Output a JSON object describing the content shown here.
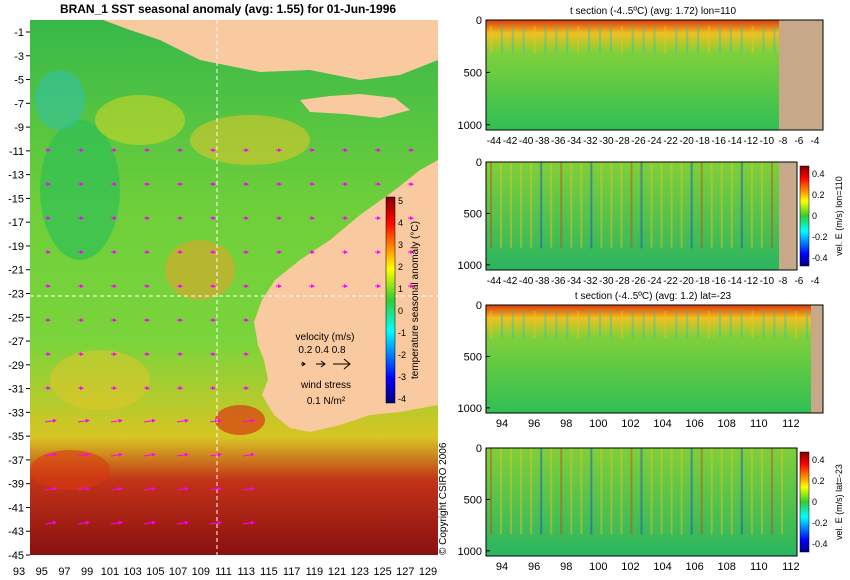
{
  "main_map": {
    "title": "BRAN_1 SST seasonal anomaly (avg: 1.55) for 01-Jun-1996",
    "lat_ticks": [
      "-1",
      "-3",
      "-5",
      "-7",
      "-9",
      "-11",
      "-13",
      "-15",
      "-17",
      "-19",
      "-21",
      "-23",
      "-25",
      "-27",
      "-29",
      "-31",
      "-33",
      "-35",
      "-37",
      "-39",
      "-41",
      "-43",
      "-45"
    ],
    "lon_ticks": [
      "93",
      "95",
      "97",
      "99",
      "101",
      "103",
      "105",
      "107",
      "109",
      "111",
      "113",
      "115",
      "117",
      "119",
      "121",
      "123",
      "125",
      "127",
      "129"
    ],
    "colorbar_ticks": [
      "5",
      "4",
      "3",
      "2",
      "1",
      "0",
      "-1",
      "-2",
      "-3",
      "-4"
    ],
    "colorbar_label": "temperature seasonal anomaly (°C)",
    "velocity_legend": {
      "title": "velocity (m/s)",
      "values": "0.2 0.4 0.8"
    },
    "wind_legend": {
      "title": "wind stress",
      "value": "0.1 N/m²"
    },
    "copyright": "© Copyright CSIRO 2006",
    "colors": {
      "land": "#f9c9a0",
      "section_land": "#c7a98a",
      "arrow": "#ff00ff",
      "crosshair": "#ffffff"
    }
  },
  "panels": [
    {
      "id": "t_section_lon110",
      "title": "t section (-4..5ºC) (avg: 1.72) lon=110",
      "y_ticks": [
        "0",
        "500",
        "1000"
      ],
      "x_ticks": [
        "-44",
        "-42",
        "-40",
        "-38",
        "-36",
        "-34",
        "-32",
        "-30",
        "-28",
        "-26",
        "-24",
        "-22",
        "-20",
        "-18",
        "-16",
        "-14",
        "-12",
        "-10",
        "-8",
        "-6",
        "-4"
      ],
      "colorbar": null
    },
    {
      "id": "vel_e_lon110",
      "title": "",
      "y_ticks": [
        "0",
        "500",
        "1000"
      ],
      "x_ticks": [
        "-44",
        "-42",
        "-40",
        "-38",
        "-36",
        "-34",
        "-32",
        "-30",
        "-28",
        "-26",
        "-24",
        "-22",
        "-20",
        "-18",
        "-16",
        "-14",
        "-12",
        "-10",
        "-8",
        "-6",
        "-4"
      ],
      "colorbar": {
        "ticks": [
          "0.4",
          "0.2",
          "0",
          "-0.2",
          "-0.4"
        ],
        "label": "vel. E (m/s) lon=110"
      }
    },
    {
      "id": "t_section_lat23",
      "title": "t section (-4..5ºC) (avg: 1.2) lat=-23",
      "y_ticks": [
        "0",
        "500",
        "1000"
      ],
      "x_ticks": [
        "94",
        "96",
        "98",
        "100",
        "102",
        "104",
        "106",
        "108",
        "110",
        "112"
      ],
      "colorbar": null
    },
    {
      "id": "vel_e_lat23",
      "title": "",
      "y_ticks": [
        "0",
        "500",
        "1000"
      ],
      "x_ticks": [
        "94",
        "96",
        "98",
        "100",
        "102",
        "104",
        "106",
        "108",
        "110",
        "112"
      ],
      "colorbar": {
        "ticks": [
          "0.4",
          "0.2",
          "0",
          "-0.2",
          "-0.4"
        ],
        "label": "vel. E (m/s) lat=-23"
      }
    }
  ],
  "chart_data": [
    {
      "type": "heatmap",
      "title": "BRAN_1 SST seasonal anomaly (avg: 1.55) for 01-Jun-1996",
      "x_range": [
        93,
        130
      ],
      "y_range": [
        -45,
        0
      ],
      "value_range": [
        -4,
        5
      ],
      "crosshair": {
        "lon": 110,
        "lat": -23
      },
      "zlabel": "temperature seasonal anomaly (°C)"
    },
    {
      "type": "heatmap",
      "title": "t section (-4..5ºC) (avg: 1.72) lon=110",
      "x_range": [
        -45,
        -3
      ],
      "y_range": [
        1050,
        0
      ],
      "value_range": [
        -4,
        5
      ]
    },
    {
      "type": "heatmap",
      "x_range": [
        -45,
        -3
      ],
      "y_range": [
        1050,
        0
      ],
      "value_range": [
        -0.5,
        0.5
      ],
      "zlabel": "vel. E (m/s) lon=110"
    },
    {
      "type": "heatmap",
      "title": "t section (-4..5ºC) (avg: 1.2) lat=-23",
      "x_range": [
        93,
        114
      ],
      "y_range": [
        1050,
        0
      ],
      "value_range": [
        -4,
        5
      ]
    },
    {
      "type": "heatmap",
      "x_range": [
        93,
        114
      ],
      "y_range": [
        1050,
        0
      ],
      "value_range": [
        -0.5,
        0.5
      ],
      "zlabel": "vel. E (m/s) lat=-23"
    }
  ]
}
